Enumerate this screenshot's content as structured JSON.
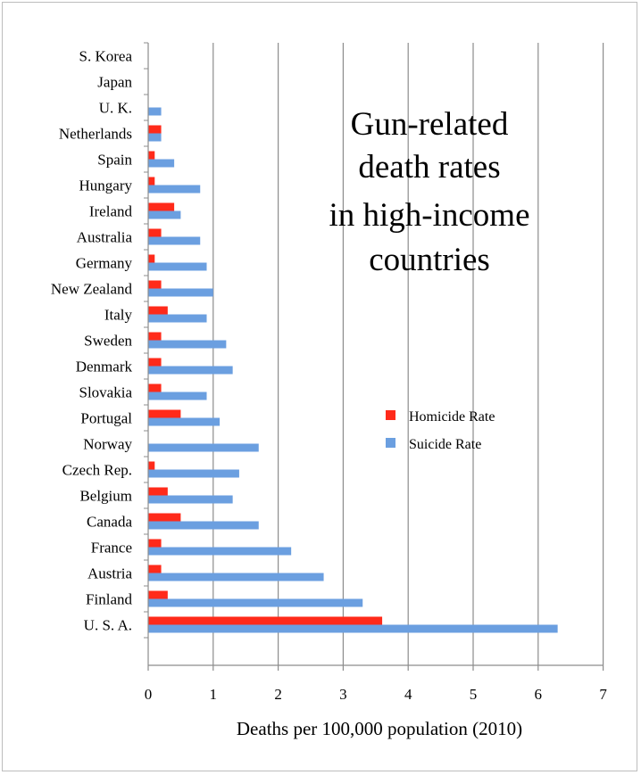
{
  "chart_data": {
    "type": "bar",
    "orientation": "horizontal",
    "title_lines": [
      "Gun-related",
      "death rates",
      "in high-income",
      "countries"
    ],
    "xlabel": "Deaths per 100,000 population (2010)",
    "ylabel": "",
    "xlim": [
      0,
      7
    ],
    "xticks": [
      "0",
      "1",
      "2",
      "3",
      "4",
      "5",
      "6",
      "7"
    ],
    "grid": "vertical",
    "legend_position": "center-right",
    "categories": [
      "S. Korea",
      "Japan",
      "U. K.",
      "Netherlands",
      "Spain",
      "Hungary",
      "Ireland",
      "Australia",
      "Germany",
      "New Zealand",
      "Italy",
      "Sweden",
      "Denmark",
      "Slovakia",
      "Portugal",
      "Norway",
      "Czech Rep.",
      "Belgium",
      "Canada",
      "France",
      "Austria",
      "Finland",
      "U. S. A."
    ],
    "series": [
      {
        "name": "Homicide Rate",
        "color": "#ff2a1a",
        "values": [
          0,
          0,
          0,
          0.2,
          0.1,
          0.1,
          0.4,
          0.2,
          0.1,
          0.2,
          0.3,
          0.2,
          0.2,
          0.2,
          0.5,
          0,
          0.1,
          0.3,
          0.5,
          0.2,
          0.2,
          0.3,
          3.6
        ]
      },
      {
        "name": "Suicide Rate",
        "color": "#6b9fe0",
        "values": [
          0,
          0,
          0.2,
          0.2,
          0.4,
          0.8,
          0.5,
          0.8,
          0.9,
          1.0,
          0.9,
          1.2,
          1.3,
          0.9,
          1.1,
          1.7,
          1.4,
          1.3,
          1.7,
          2.2,
          2.7,
          3.3,
          6.3
        ]
      }
    ]
  }
}
